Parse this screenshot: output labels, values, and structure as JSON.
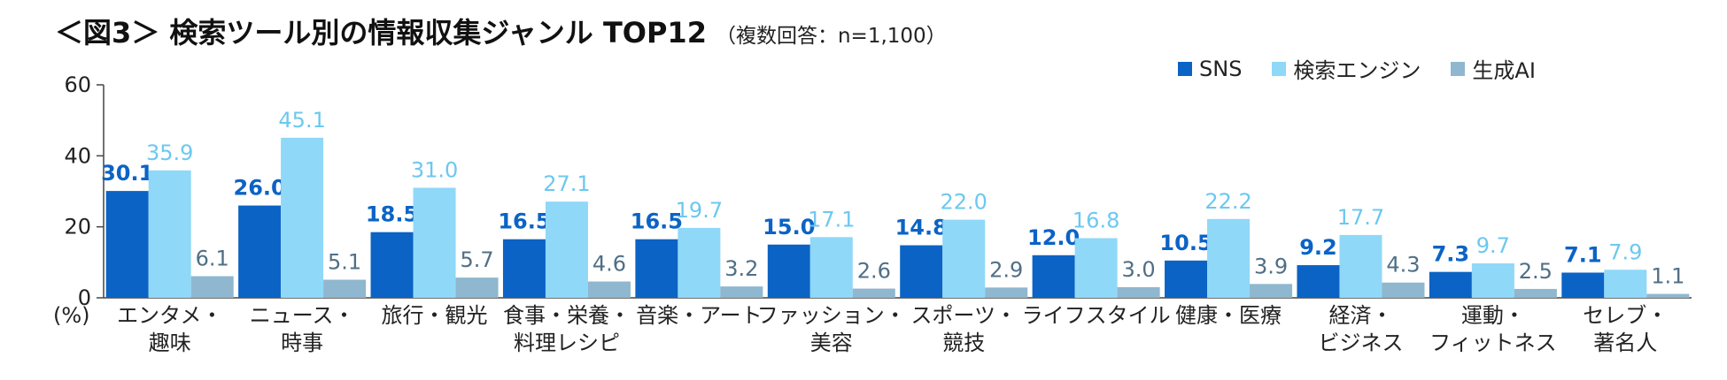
{
  "chart_data": {
    "type": "bar",
    "title": "＜図3＞ 検索ツール別の情報収集ジャンル TOP12",
    "subtitle": "（複数回答：n=1,100）",
    "ylabel": "(%)",
    "ylim": [
      0,
      60
    ],
    "yticks": [
      "0",
      "20",
      "40",
      "60"
    ],
    "grid": false,
    "legend_position": "top-right",
    "categories": [
      [
        "エンタメ・",
        "趣味"
      ],
      [
        "ニュース・",
        "時事"
      ],
      [
        "旅行・観光"
      ],
      [
        "食事・栄養・",
        "料理レシピ"
      ],
      [
        "音楽・アート"
      ],
      [
        "ファッション・",
        "美容"
      ],
      [
        "スポーツ・",
        "競技"
      ],
      [
        "ライフスタイル"
      ],
      [
        "健康・医療"
      ],
      [
        "経済・",
        "ビジネス"
      ],
      [
        "運動・",
        "フィットネス"
      ],
      [
        "セレブ・",
        "著名人"
      ]
    ],
    "series": [
      {
        "name": "SNS",
        "color": "#0b63c5",
        "values": [
          30.1,
          26.0,
          18.5,
          16.5,
          16.5,
          15.0,
          14.8,
          12.0,
          10.5,
          9.2,
          7.3,
          7.1
        ],
        "labels": [
          "30.1",
          "26.0",
          "18.5",
          "16.5",
          "16.5",
          "15.0",
          "14.8",
          "12.0",
          "10.5",
          "9.2",
          "7.3",
          "7.1"
        ],
        "label_color": "#0b63c5"
      },
      {
        "name": "検索エンジン",
        "color": "#8fd8f8",
        "values": [
          35.9,
          45.1,
          31.0,
          27.1,
          19.7,
          17.1,
          22.0,
          16.8,
          22.2,
          17.7,
          9.7,
          7.9
        ],
        "labels": [
          "35.9",
          "45.1",
          "31.0",
          "27.1",
          "19.7",
          "17.1",
          "22.0",
          "16.8",
          "22.2",
          "17.7",
          "9.7",
          "7.9"
        ],
        "label_color": "#6cc8ef"
      },
      {
        "name": "生成AI",
        "color": "#8fb7cf",
        "values": [
          6.1,
          5.1,
          5.7,
          4.6,
          3.2,
          2.6,
          2.9,
          3.0,
          3.9,
          4.3,
          2.5,
          1.1
        ],
        "labels": [
          "6.1",
          "5.1",
          "5.7",
          "4.6",
          "3.2",
          "2.6",
          "2.9",
          "3.0",
          "3.9",
          "4.3",
          "2.5",
          "1.1"
        ],
        "label_color": "#4f6f86"
      }
    ]
  }
}
